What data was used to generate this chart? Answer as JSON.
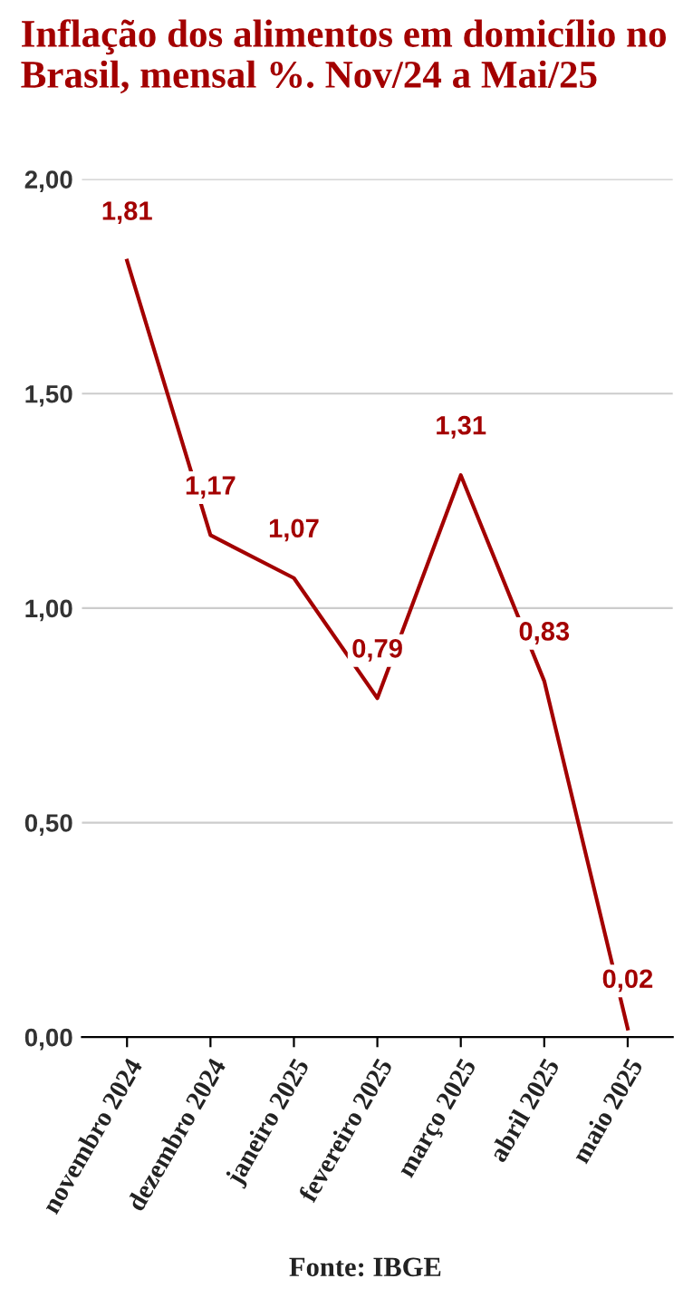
{
  "chart_data": {
    "type": "line",
    "title": "Inflação dos alimentos em domicílio no Brasil, mensal %. Nov/24 a Mai/25",
    "categories": [
      "novembro 2024",
      "dezembro 2024",
      "janeiro 2025",
      "fevereiro 2025",
      "março 2025",
      "abril 2025",
      "maio 2025"
    ],
    "series": [
      {
        "color": "#a30000",
        "values": [
          1.81,
          1.17,
          1.07,
          0.79,
          1.31,
          0.83,
          0.02
        ],
        "value_labels": [
          "1,81",
          "1,17",
          "1,07",
          "0,79",
          "1,31",
          "0,83",
          "0,02"
        ]
      }
    ],
    "ylim": [
      0,
      2
    ],
    "yticks": [
      {
        "value": 0,
        "label": "0,00"
      },
      {
        "value": 0.5,
        "label": "0,50"
      },
      {
        "value": 1,
        "label": "1,00"
      },
      {
        "value": 1.5,
        "label": "1,50"
      },
      {
        "value": 2,
        "label": "2,00"
      }
    ],
    "grid": "y",
    "marker": "none",
    "line_style": "solid",
    "annotations": [
      "Fonte: IBGE"
    ]
  }
}
